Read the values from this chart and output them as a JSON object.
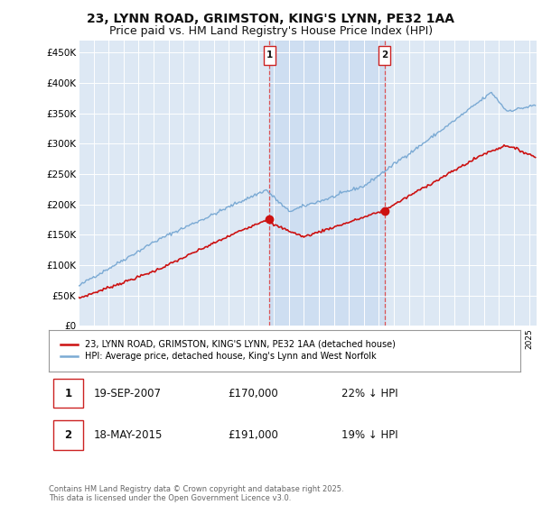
{
  "title_line1": "23, LYNN ROAD, GRIMSTON, KING'S LYNN, PE32 1AA",
  "title_line2": "Price paid vs. HM Land Registry's House Price Index (HPI)",
  "title_fontsize": 10,
  "subtitle_fontsize": 9,
  "background_color": "#ffffff",
  "plot_bg_color": "#dde8f4",
  "shade_color": "#c8daf0",
  "grid_color": "#ffffff",
  "hpi_color": "#7baad4",
  "price_color": "#cc1111",
  "vline_color": "#dd4444",
  "marker_edge_color": "#cc2222",
  "sale1_date": "19-SEP-2007",
  "sale1_price": "£170,000",
  "sale1_hpi": "22% ↓ HPI",
  "sale2_date": "18-MAY-2015",
  "sale2_price": "£191,000",
  "sale2_hpi": "19% ↓ HPI",
  "legend_label_price": "23, LYNN ROAD, GRIMSTON, KING'S LYNN, PE32 1AA (detached house)",
  "legend_label_hpi": "HPI: Average price, detached house, King's Lynn and West Norfolk",
  "footer": "Contains HM Land Registry data © Crown copyright and database right 2025.\nThis data is licensed under the Open Government Licence v3.0.",
  "ylim": [
    0,
    470000
  ],
  "yticks": [
    0,
    50000,
    100000,
    150000,
    200000,
    250000,
    300000,
    350000,
    400000,
    450000
  ],
  "ytick_labels": [
    "£0",
    "£50K",
    "£100K",
    "£150K",
    "£200K",
    "£250K",
    "£300K",
    "£350K",
    "£400K",
    "£450K"
  ],
  "year_start": 1995,
  "year_end": 2025,
  "vline1_year": 2007.708,
  "vline2_year": 2015.375
}
